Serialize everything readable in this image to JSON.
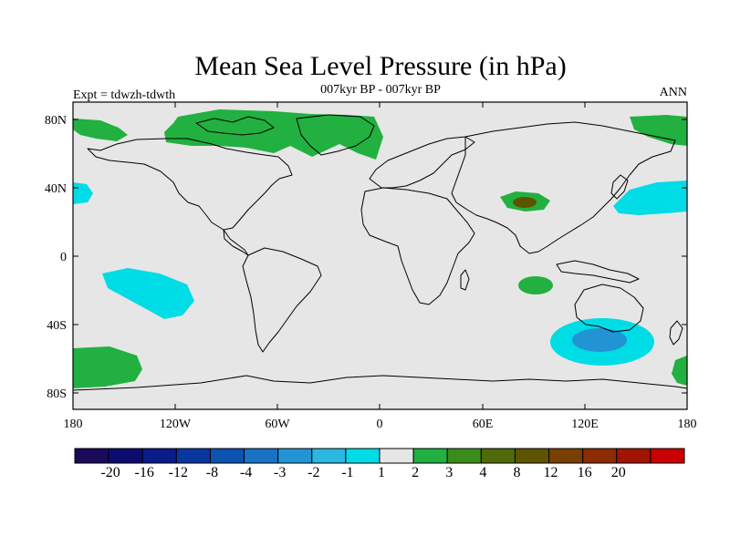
{
  "title": "Mean Sea Level Pressure (in hPa)",
  "subtitle": "007kyr BP - 007kyr BP",
  "left_label": "Expt = tdwzh-tdwth",
  "right_label": "ANN",
  "lat_ticks": [
    "80N",
    "40N",
    "0",
    "40S",
    "80S"
  ],
  "lon_ticks": [
    "180",
    "120W",
    "60W",
    "0",
    "60E",
    "120E",
    "180"
  ],
  "colorbar": {
    "colors": [
      "#1a0a5a",
      "#0c0c70",
      "#0a1c8a",
      "#0a36a0",
      "#0c52b0",
      "#1a72c4",
      "#2294d4",
      "#2ab8e0",
      "#00dce6",
      "#e6e6e6",
      "#22b040",
      "#3c8c1c",
      "#506a0a",
      "#5e5400",
      "#784000",
      "#8c2c00",
      "#a01400",
      "#c80000"
    ],
    "labels": [
      "-20",
      "-16",
      "-12",
      "-8",
      "-4",
      "-3",
      "-2",
      "-1",
      "1",
      "2",
      "3",
      "4",
      "8",
      "12",
      "16",
      "20"
    ]
  },
  "map": {
    "ocean_color": "#e6e6e6",
    "positive_color": "#22b040",
    "negative_color": "#00dce6",
    "strong_negative_color": "#2294d4",
    "strong_positive_color": "#3c8c1c"
  }
}
